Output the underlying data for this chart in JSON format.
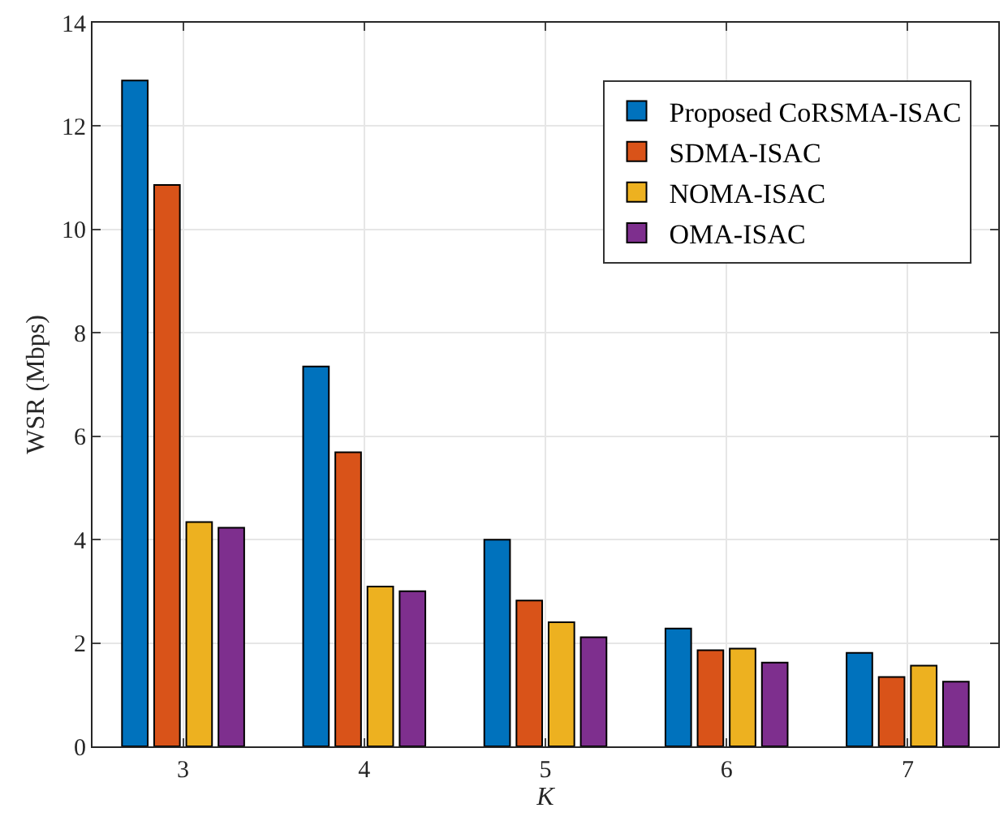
{
  "chart_data": {
    "type": "bar",
    "xlabel": "K",
    "ylabel": "WSR (Mbps)",
    "x": [
      3,
      4,
      5,
      6,
      7
    ],
    "xlim": [
      2.5,
      7.5
    ],
    "xticks": [
      3,
      4,
      5,
      6,
      7
    ],
    "ylim": [
      0,
      14
    ],
    "yticks": [
      0,
      2,
      4,
      6,
      8,
      10,
      12,
      14
    ],
    "grid": true,
    "legend": "top right",
    "series": [
      {
        "name": "Proposed CoRSMA-ISAC",
        "color": "#0072bd",
        "values": [
          12.88,
          7.35,
          4.0,
          2.28,
          1.81
        ]
      },
      {
        "name": "SDMA-ISAC",
        "color": "#d95319",
        "values": [
          10.86,
          5.69,
          2.82,
          1.86,
          1.34
        ]
      },
      {
        "name": "NOMA-ISAC",
        "color": "#edb120",
        "values": [
          4.34,
          3.09,
          2.4,
          1.89,
          1.56
        ]
      },
      {
        "name": "OMA-ISAC",
        "color": "#7e2f8e",
        "values": [
          4.23,
          3.0,
          2.11,
          1.62,
          1.25
        ]
      }
    ]
  }
}
